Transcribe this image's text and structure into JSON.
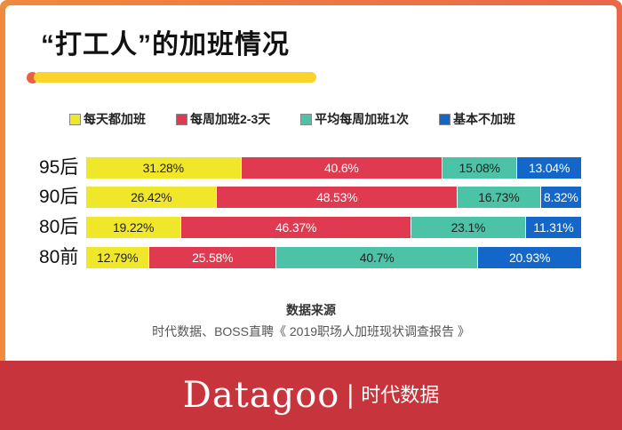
{
  "chart_data": {
    "type": "bar",
    "orientation": "horizontal-stacked",
    "title": "“打工人”的加班情况",
    "categories": [
      "95后",
      "90后",
      "80后",
      "80前"
    ],
    "series": [
      {
        "name": "每天都加班",
        "color": "#f1e72a",
        "text_color": "#222",
        "values": [
          31.28,
          26.42,
          19.22,
          12.79
        ],
        "labels": [
          "31.28%",
          "26.42%",
          "19.22%",
          "12.79%"
        ]
      },
      {
        "name": "每周加班2-3天",
        "color": "#e03a50",
        "text_color": "#fff",
        "values": [
          40.6,
          48.53,
          46.37,
          25.58
        ],
        "labels": [
          "40.6%",
          "48.53%",
          "46.37%",
          "25.58%"
        ]
      },
      {
        "name": "平均每周加班1次",
        "color": "#4cc3a6",
        "text_color": "#222",
        "values": [
          15.08,
          16.73,
          23.1,
          40.7
        ],
        "labels": [
          "15.08%",
          "16.73%",
          "23.1%",
          "40.7%"
        ]
      },
      {
        "name": "基本不加班",
        "color": "#1466c8",
        "text_color": "#fff",
        "values": [
          13.04,
          8.32,
          11.31,
          20.93
        ],
        "labels": [
          "13.04%",
          "8.32%",
          "11.31%",
          "20.93%"
        ]
      }
    ],
    "xlim": [
      0,
      100
    ],
    "legend": "top"
  },
  "source_title": "数据来源",
  "source": "时代数据、BOSS直聘《 2019职场人加班现状调查报告 》",
  "brand": "Datagoo",
  "brand_sep": "|",
  "brand_cn": "时代数据"
}
